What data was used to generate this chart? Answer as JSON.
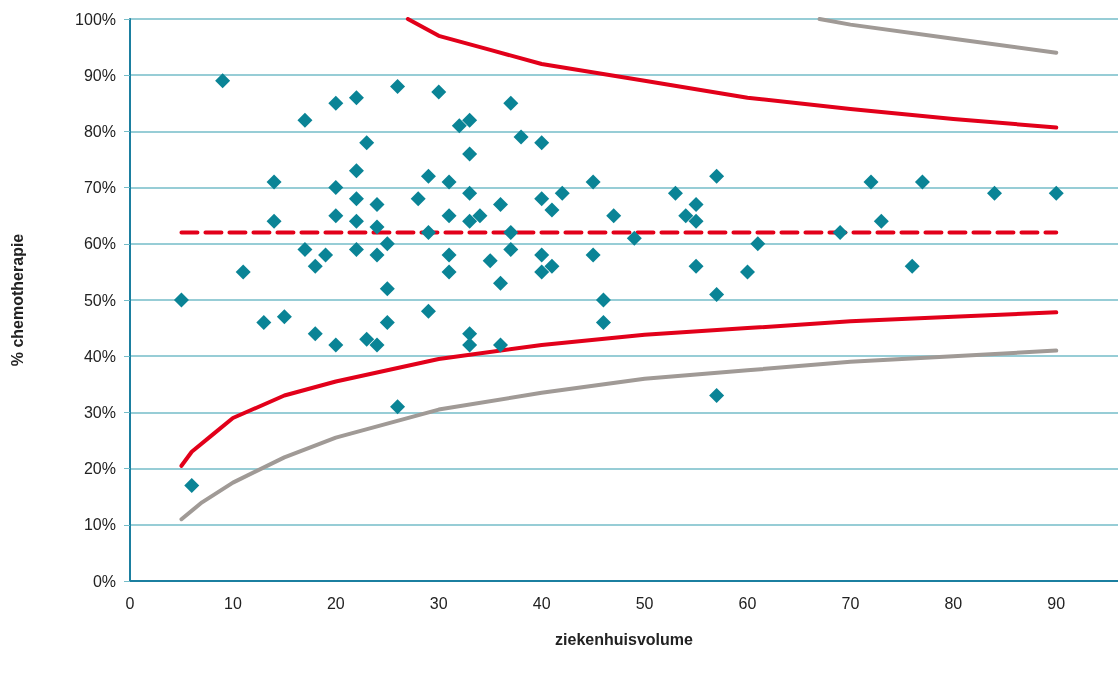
{
  "chart_data": {
    "type": "scatter",
    "xlabel": "ziekenhuisvolume",
    "ylabel": "% chemotherapie",
    "xlim": [
      0,
      96
    ],
    "xticks": [
      0,
      10,
      20,
      30,
      40,
      50,
      60,
      70,
      80,
      90
    ],
    "ylim": [
      0,
      100
    ],
    "yticks": [
      {
        "value": 0,
        "label": "0%"
      },
      {
        "value": 10,
        "label": "10%"
      },
      {
        "value": 20,
        "label": "20%"
      },
      {
        "value": 30,
        "label": "30%"
      },
      {
        "value": 40,
        "label": "40%"
      },
      {
        "value": 50,
        "label": "50%"
      },
      {
        "value": 60,
        "label": "60%"
      },
      {
        "value": 70,
        "label": "70%"
      },
      {
        "value": 80,
        "label": "80%"
      },
      {
        "value": 90,
        "label": "90%"
      },
      {
        "value": 100,
        "label": "100%"
      }
    ],
    "grid": "y",
    "series": [
      {
        "marker": "diamond",
        "color": "#0a8496",
        "x": [
          5,
          6,
          9,
          11,
          13,
          14,
          14,
          15,
          17,
          17,
          18,
          18,
          19,
          20,
          20,
          20,
          20,
          22,
          22,
          22,
          22,
          22,
          23,
          23,
          24,
          24,
          24,
          24,
          25,
          25,
          25,
          26,
          26,
          28,
          29,
          29,
          29,
          30,
          31,
          31,
          31,
          31,
          32,
          33,
          33,
          33,
          33,
          33,
          33,
          34,
          35,
          36,
          36,
          36,
          37,
          37,
          37,
          38,
          40,
          40,
          40,
          40,
          41,
          41,
          42,
          45,
          45,
          46,
          46,
          47,
          49,
          53,
          54,
          55,
          55,
          55,
          57,
          57,
          57,
          60,
          61,
          69,
          72,
          73,
          76,
          77,
          84,
          90
        ],
        "values": [
          50,
          17,
          89,
          55,
          46,
          71,
          64,
          47,
          82,
          59,
          56,
          44,
          58,
          85,
          70,
          65,
          42,
          86,
          73,
          68,
          64,
          59,
          78,
          43,
          67,
          63,
          58,
          42,
          60,
          52,
          46,
          88,
          31,
          68,
          72,
          62,
          48,
          87,
          71,
          65,
          58,
          55,
          81,
          82,
          76,
          69,
          64,
          44,
          42,
          65,
          57,
          67,
          53,
          42,
          85,
          62,
          59,
          79,
          78,
          68,
          58,
          55,
          66,
          56,
          69,
          71,
          58,
          50,
          46,
          65,
          61,
          69,
          65,
          67,
          64,
          56,
          72,
          51,
          33,
          55,
          60,
          62,
          71,
          64,
          56,
          71,
          69,
          69
        ]
      },
      {
        "type": "line",
        "marker": "none",
        "line_style": "dashed",
        "color": "#e2001a",
        "x": [
          5,
          90
        ],
        "values": [
          62,
          62
        ]
      },
      {
        "type": "line",
        "marker": "none",
        "line_style": "solid",
        "color": "#e2001a",
        "x": [
          5,
          6,
          8,
          10,
          15,
          20,
          30,
          40,
          50,
          60,
          70,
          80,
          90
        ],
        "values": [
          20.5,
          23,
          26,
          29,
          33,
          35.5,
          39.5,
          42,
          43.8,
          45,
          46.2,
          47,
          47.8
        ]
      },
      {
        "type": "line",
        "marker": "none",
        "line_style": "solid",
        "color": "#e2001a",
        "x": [
          27,
          30,
          35,
          40,
          50,
          60,
          70,
          80,
          90
        ],
        "values": [
          100,
          97,
          94.5,
          92,
          89,
          86,
          84,
          82.2,
          80.7
        ]
      },
      {
        "type": "line",
        "marker": "none",
        "line_style": "solid",
        "color": "#a09a96",
        "x": [
          5,
          7,
          10,
          15,
          20,
          30,
          40,
          50,
          60,
          70,
          80,
          90
        ],
        "values": [
          11,
          14,
          17.5,
          22,
          25.5,
          30.5,
          33.5,
          36,
          37.5,
          39,
          40,
          41
        ]
      },
      {
        "type": "line",
        "marker": "none",
        "line_style": "solid",
        "color": "#a09a96",
        "x": [
          67,
          70,
          80,
          90
        ],
        "values": [
          100,
          99,
          96.5,
          94
        ]
      }
    ]
  }
}
